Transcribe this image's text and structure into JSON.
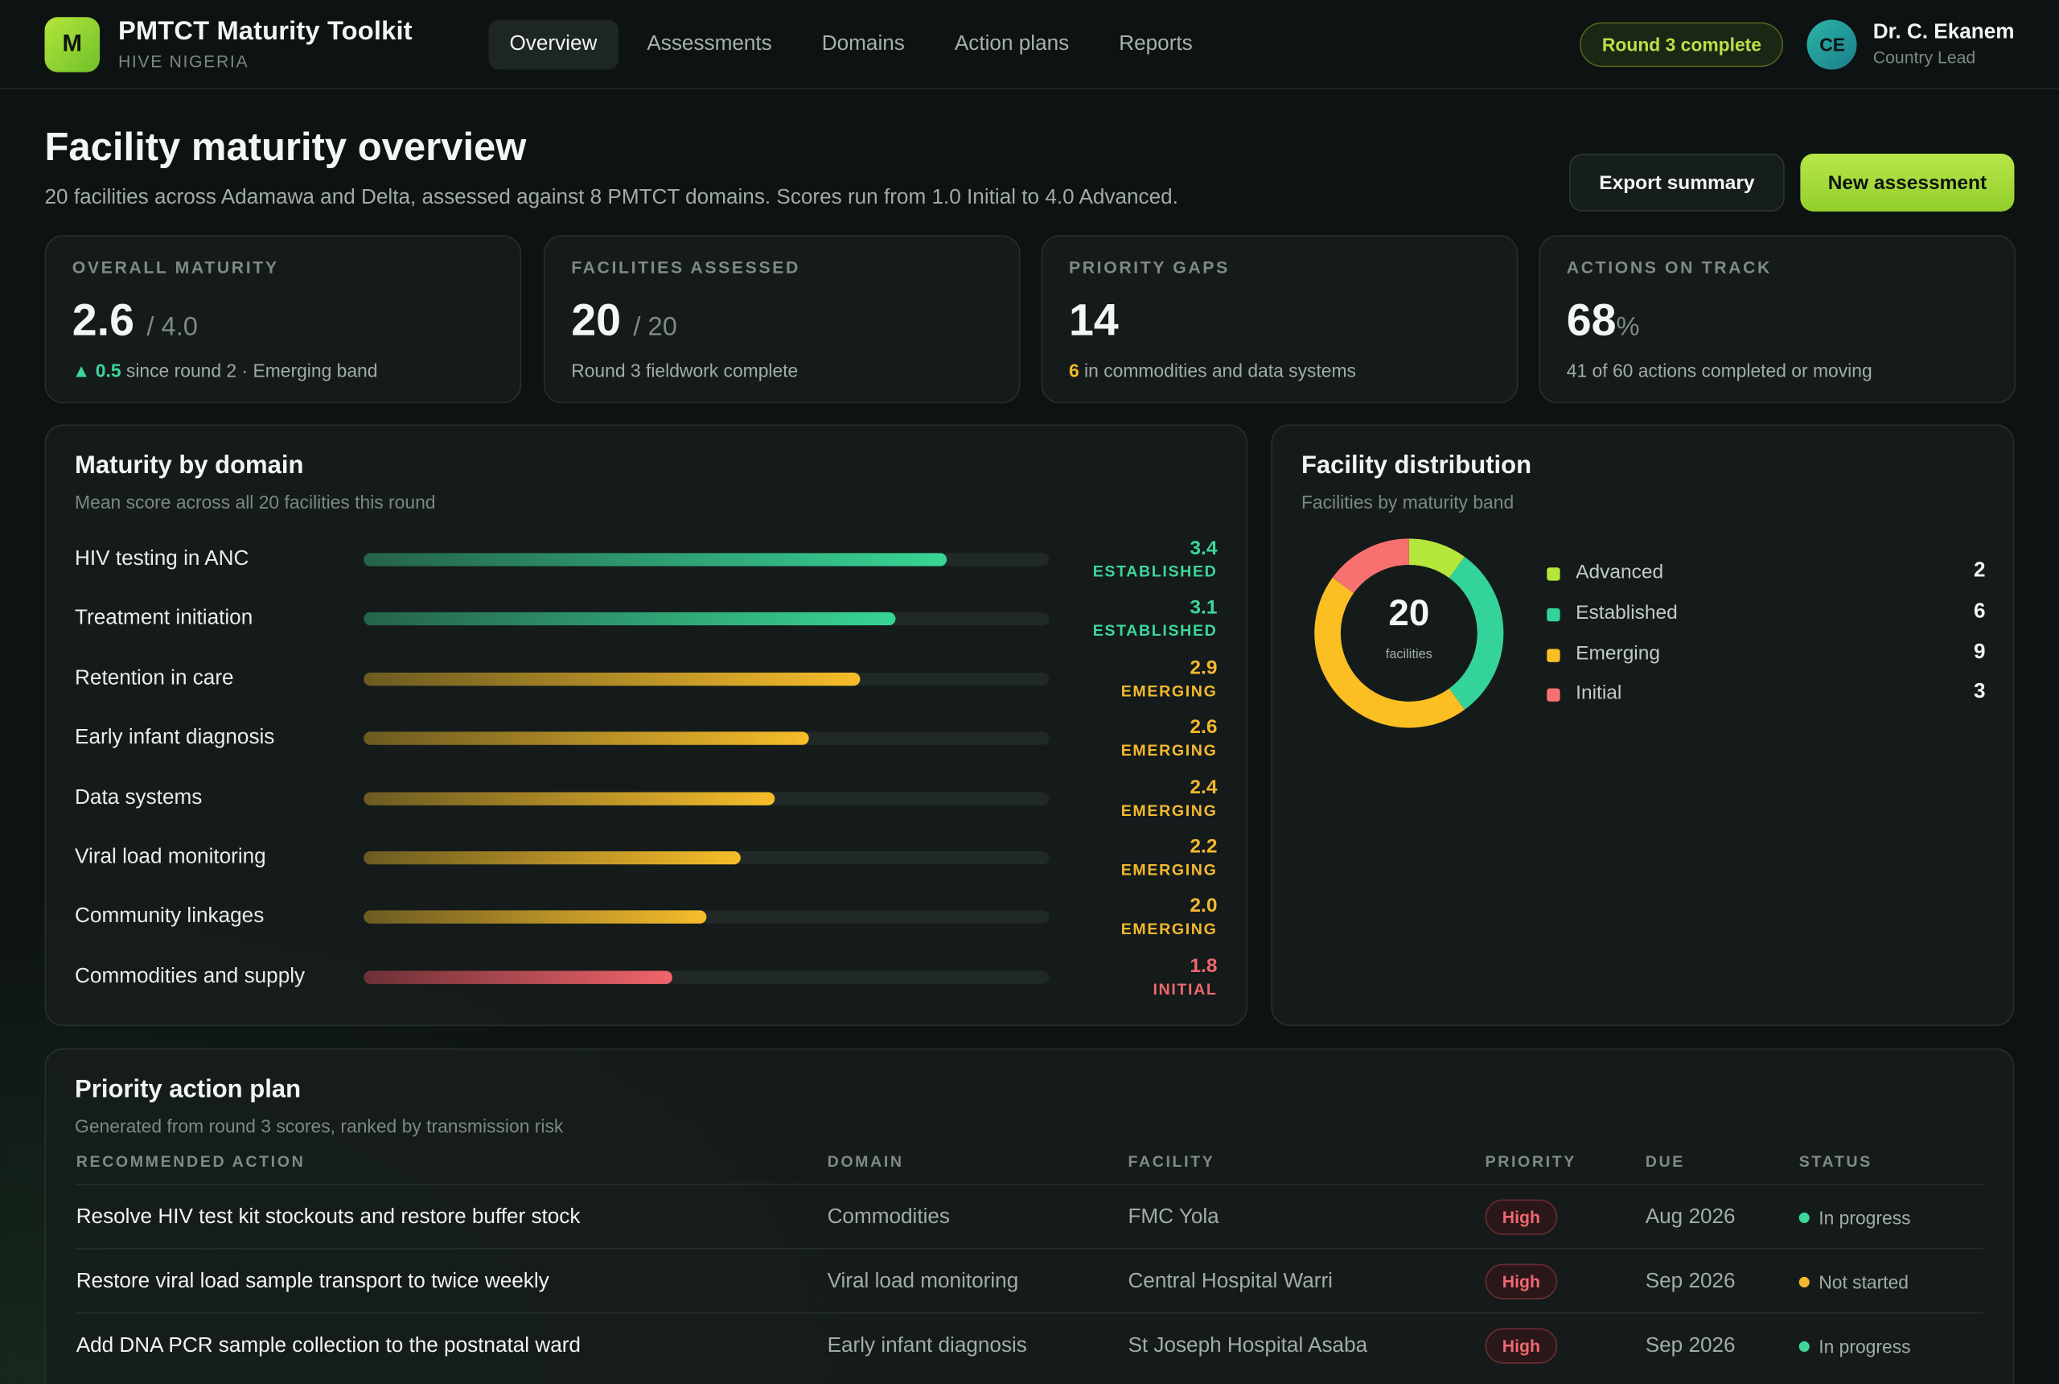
{
  "app": {
    "logo_letter": "M",
    "name": "PMTCT Maturity Toolkit",
    "org": "HIVE NIGERIA"
  },
  "nav": {
    "items": [
      "Overview",
      "Assessments",
      "Domains",
      "Action plans",
      "Reports"
    ],
    "active": "Overview"
  },
  "round_badge": "Round 3 complete",
  "user": {
    "initials": "CE",
    "name": "Dr. C. Ekanem",
    "role": "Country Lead"
  },
  "header": {
    "title": "Facility maturity overview",
    "subtitle": "20 facilities across Adamawa and Delta, assessed against 8 PMTCT domains. Scores run from 1.0 Initial to 4.0 Advanced.",
    "export_label": "Export summary",
    "new_label": "New assessment"
  },
  "kpis": [
    {
      "label": "OVERALL MATURITY",
      "value": "2.6",
      "suffix": "/ 4.0",
      "note_accent": "▲ 0.5",
      "note": "since round 2 · Emerging band",
      "accent": "#3ed69a"
    },
    {
      "label": "FACILITIES ASSESSED",
      "value": "20",
      "suffix": "/ 20",
      "note_accent": "",
      "note": "Round 3 fieldwork complete",
      "accent": ""
    },
    {
      "label": "PRIORITY GAPS",
      "value": "14",
      "suffix": "",
      "note_accent": "6",
      "note": "in commodities and data systems",
      "accent": "#f5b82e"
    },
    {
      "label": "ACTIONS ON TRACK",
      "value": "68",
      "suffix": "%",
      "note_accent": "",
      "note": "41 of 60 actions completed or moving",
      "accent": ""
    }
  ],
  "domains_panel": {
    "title": "Maturity by domain",
    "subtitle": "Mean score across all 20 facilities this round",
    "scale_max": 4.0,
    "rows": [
      {
        "name": "HIV testing in ANC",
        "score": "3.4",
        "value": 3.4,
        "band": "ESTABLISHED"
      },
      {
        "name": "Treatment initiation",
        "score": "3.1",
        "value": 3.1,
        "band": "ESTABLISHED"
      },
      {
        "name": "Retention in care",
        "score": "2.9",
        "value": 2.9,
        "band": "EMERGING"
      },
      {
        "name": "Early infant diagnosis",
        "score": "2.6",
        "value": 2.6,
        "band": "EMERGING"
      },
      {
        "name": "Data systems",
        "score": "2.4",
        "value": 2.4,
        "band": "EMERGING"
      },
      {
        "name": "Viral load monitoring",
        "score": "2.2",
        "value": 2.2,
        "band": "EMERGING"
      },
      {
        "name": "Community linkages",
        "score": "2.0",
        "value": 2.0,
        "band": "EMERGING"
      },
      {
        "name": "Commodities and supply",
        "score": "1.8",
        "value": 1.8,
        "band": "INITIAL"
      }
    ],
    "band_colors": {
      "ESTABLISHED": "#3ed69a",
      "EMERGING": "#f5b82e",
      "INITIAL": "#f0686f"
    }
  },
  "distribution_panel": {
    "title": "Facility distribution",
    "subtitle": "Facilities by maturity band",
    "center_value": "20",
    "center_label": "facilities",
    "bands": [
      {
        "label": "Advanced",
        "count": "2",
        "value": 2,
        "color": "#b5e63a"
      },
      {
        "label": "Established",
        "count": "6",
        "value": 6,
        "color": "#34d399"
      },
      {
        "label": "Emerging",
        "count": "9",
        "value": 9,
        "color": "#fbbf24"
      },
      {
        "label": "Initial",
        "count": "3",
        "value": 3,
        "color": "#f87171"
      }
    ]
  },
  "action_plan": {
    "title": "Priority action plan",
    "subtitle": "Generated from round 3 scores, ranked by transmission risk",
    "columns": [
      "RECOMMENDED ACTION",
      "DOMAIN",
      "FACILITY",
      "PRIORITY",
      "DUE",
      "STATUS"
    ],
    "rows": [
      {
        "action": "Resolve HIV test kit stockouts and restore buffer stock",
        "domain": "Commodities",
        "facility": "FMC Yola",
        "priority": "High",
        "due": "Aug 2026",
        "status": "In progress",
        "status_color": "#3ed69a"
      },
      {
        "action": "Restore viral load sample transport to twice weekly",
        "domain": "Viral load monitoring",
        "facility": "Central Hospital Warri",
        "priority": "High",
        "due": "Sep 2026",
        "status": "Not started",
        "status_color": "#f5b82e"
      },
      {
        "action": "Add DNA PCR sample collection to the postnatal ward",
        "domain": "Early infant diagnosis",
        "facility": "St Joseph Hospital Asaba",
        "priority": "High",
        "due": "Sep 2026",
        "status": "In progress",
        "status_color": "#3ed69a"
      }
    ]
  }
}
